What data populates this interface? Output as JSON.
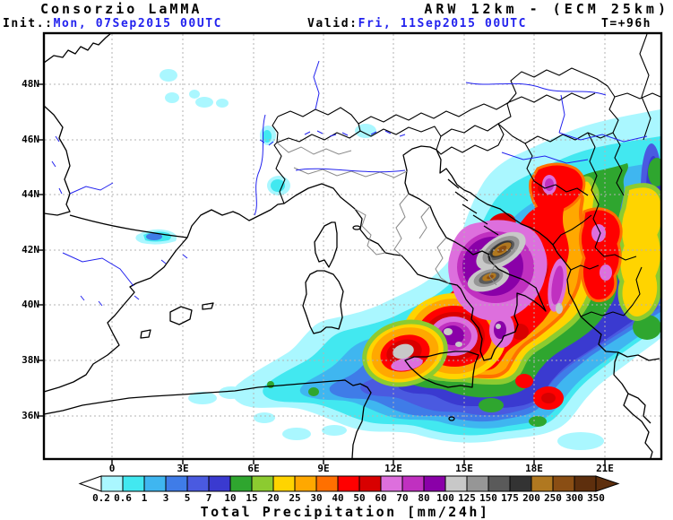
{
  "header": {
    "brand": "Consorzio LaMMA",
    "model_title": "ARW 12km - (ECM 25km)",
    "init_label": "Init.:",
    "init_value": "Mon, 07Sep2015 00UTC",
    "valid_label": "Valid:",
    "valid_value": "Fri, 11Sep2015 00UTC",
    "lead_time": "T=+96h",
    "accent_blue": "#2222ee"
  },
  "map": {
    "lat_labels": [
      "48N",
      "46N",
      "44N",
      "42N",
      "40N",
      "38N",
      "36N"
    ],
    "lon_labels": [
      "0",
      "3E",
      "6E",
      "9E",
      "12E",
      "15E",
      "18E",
      "21E"
    ],
    "coast_color": "#000000",
    "region_border_color": "#888888",
    "river_color": "#2222ee",
    "gridline_color": "#b3b3b3"
  },
  "colorbar": {
    "title": "Total Precipitation [mm/24h]",
    "tick_labels": [
      "0.2",
      "0.6",
      "1",
      "3",
      "5",
      "7",
      "10",
      "15",
      "20",
      "25",
      "30",
      "40",
      "50",
      "60",
      "70",
      "80",
      "100",
      "125",
      "150",
      "175",
      "200",
      "250",
      "300",
      "350"
    ],
    "colors": [
      "#aaf7ff",
      "#42e8f0",
      "#3fb6f0",
      "#3f7ce8",
      "#4a5ae0",
      "#3a3ad0",
      "#2fa62f",
      "#8ccb30",
      "#ffd400",
      "#ffa800",
      "#ff7000",
      "#ff0000",
      "#d80000",
      "#dd6fdd",
      "#c030c0",
      "#8a00a8",
      "#c8c8c8",
      "#969696",
      "#5a5a5a",
      "#333333",
      "#b07820",
      "#8a4e14",
      "#5e2f0d"
    ],
    "under_color": "#ffffff",
    "over_color": "#5e2f0d"
  }
}
